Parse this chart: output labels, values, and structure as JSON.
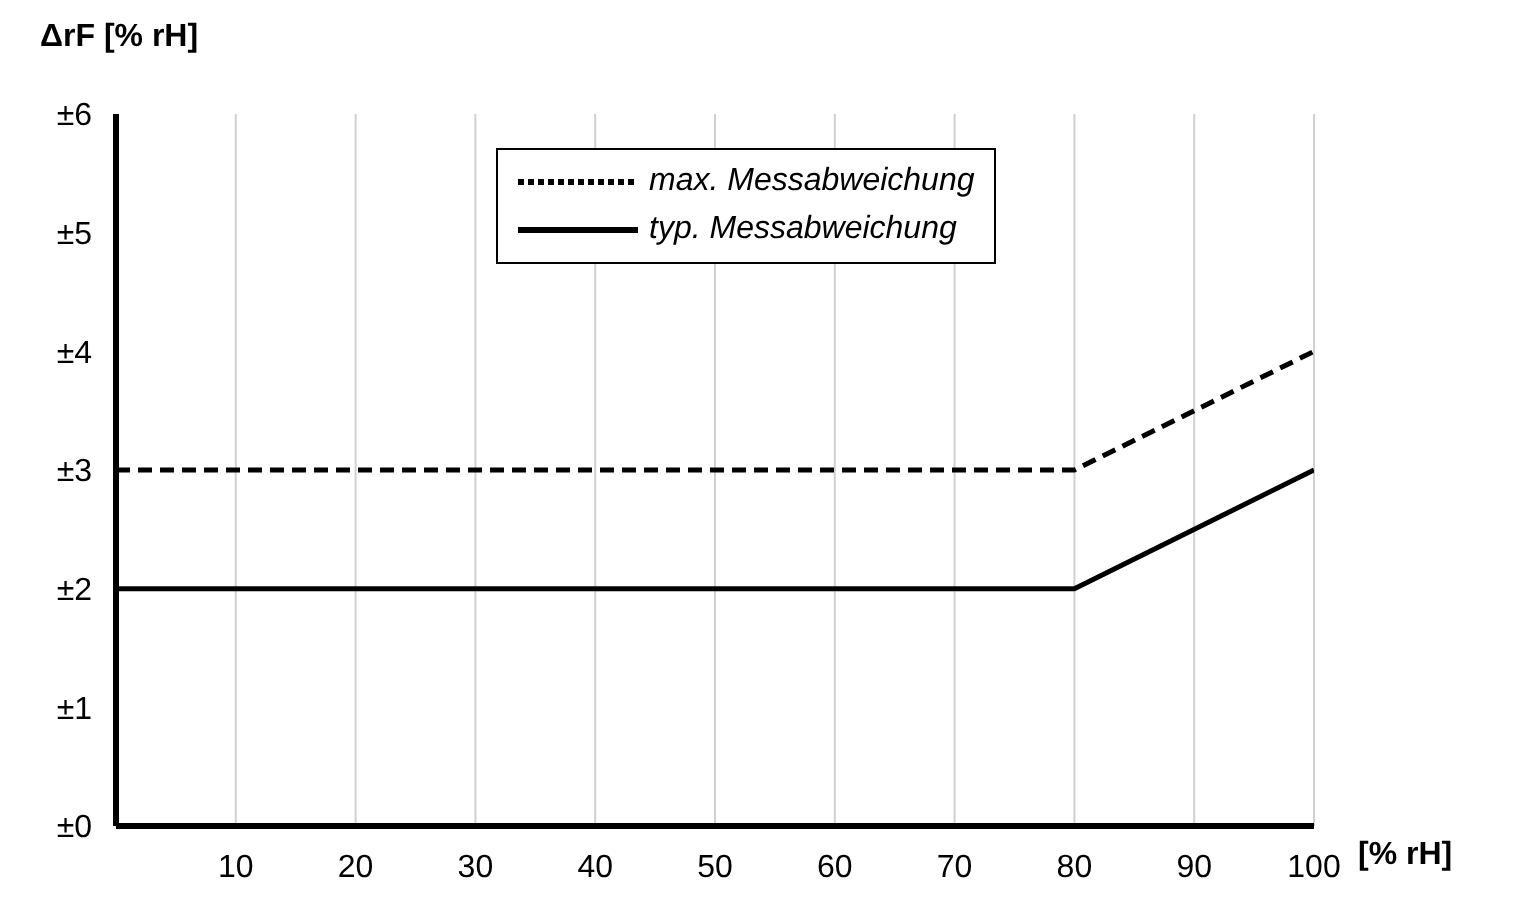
{
  "chart_data": {
    "type": "line",
    "xlabel": "[% rH]",
    "ylabel": "ΔrF [% rH]",
    "x": [
      0,
      80,
      100
    ],
    "series": [
      {
        "name": "max. Messabweichung",
        "color": "#000000",
        "values": [
          3,
          3,
          4
        ],
        "line_style": "dashed"
      },
      {
        "name": "typ. Messabweichung",
        "color": "#000000",
        "values": [
          2,
          2,
          3
        ],
        "line_style": "solid"
      }
    ],
    "xlim": [
      0,
      100
    ],
    "xticks": [
      10,
      20,
      30,
      40,
      50,
      60,
      70,
      80,
      90,
      100
    ],
    "ylim": [
      0,
      6
    ],
    "yticks": [
      {
        "value": 0,
        "label": "±0"
      },
      {
        "value": 1,
        "label": "±1"
      },
      {
        "value": 2,
        "label": "±2"
      },
      {
        "value": 3,
        "label": "±3"
      },
      {
        "value": 4,
        "label": "±4"
      },
      {
        "value": 5,
        "label": "±5"
      },
      {
        "value": 6,
        "label": "±6"
      }
    ],
    "grid": "x",
    "legend": "top",
    "marker": "none"
  }
}
